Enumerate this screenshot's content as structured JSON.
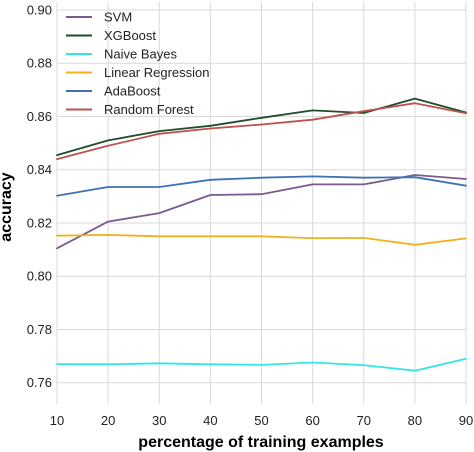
{
  "chart_data": {
    "type": "line",
    "xlabel": "percentage of training examples",
    "ylabel": "accuracy",
    "x": [
      10,
      20,
      30,
      40,
      50,
      60,
      70,
      80,
      90
    ],
    "xticks": [
      10,
      20,
      30,
      40,
      50,
      60,
      70,
      80,
      90
    ],
    "xtick_labels": [
      "10",
      "20",
      "30",
      "40",
      "50",
      "60",
      "70",
      "80",
      "90"
    ],
    "xlim": [
      10,
      90
    ],
    "yticks": [
      0.76,
      0.78,
      0.8,
      0.82,
      0.84,
      0.86,
      0.88,
      0.9
    ],
    "ytick_labels": [
      "0.76",
      "0.78",
      "0.80",
      "0.82",
      "0.84",
      "0.86",
      "0.88",
      "0.90"
    ],
    "ylim": [
      0.752,
      0.903
    ],
    "grid": true,
    "legend_position": "top-left",
    "series": [
      {
        "name": "SVM",
        "color": "#7b5a8f",
        "values": [
          0.8105,
          0.8205,
          0.8237,
          0.8305,
          0.8308,
          0.8345,
          0.8345,
          0.838,
          0.8365
        ]
      },
      {
        "name": "XGBoost",
        "color": "#1e4d2b",
        "values": [
          0.8455,
          0.851,
          0.8545,
          0.8565,
          0.8595,
          0.8623,
          0.8613,
          0.8667,
          0.8615
        ]
      },
      {
        "name": "Naive Bayes",
        "color": "#33e6e6",
        "values": [
          0.767,
          0.7669,
          0.7673,
          0.7669,
          0.7667,
          0.7676,
          0.7666,
          0.7645,
          0.769
        ]
      },
      {
        "name": "Linear Regression",
        "color": "#f2b01e",
        "values": [
          0.8152,
          0.8155,
          0.815,
          0.815,
          0.815,
          0.8143,
          0.8144,
          0.8118,
          0.8142
        ]
      },
      {
        "name": "AdaBoost",
        "color": "#3d72b4",
        "values": [
          0.8302,
          0.8335,
          0.8335,
          0.8362,
          0.837,
          0.8375,
          0.837,
          0.8372,
          0.834
        ]
      },
      {
        "name": "Random Forest",
        "color": "#c0504d",
        "values": [
          0.844,
          0.849,
          0.8535,
          0.8555,
          0.857,
          0.8588,
          0.862,
          0.865,
          0.8612
        ]
      }
    ]
  }
}
